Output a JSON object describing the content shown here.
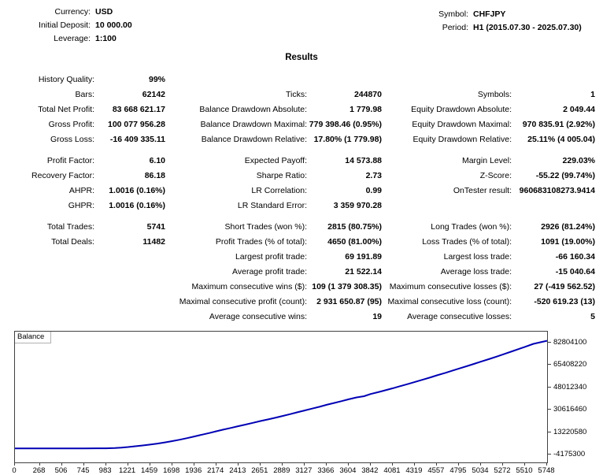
{
  "header": {
    "left": [
      {
        "label": "Currency:",
        "value": "USD"
      },
      {
        "label": "Initial Deposit:",
        "value": "10 000.00"
      },
      {
        "label": "Leverage:",
        "value": "1:100"
      }
    ],
    "right": [
      {
        "label": "Symbol:",
        "value": "CHFJPY"
      },
      {
        "label": "Period:",
        "value": "H1 (2015.07.30 - 2025.07.30)"
      }
    ]
  },
  "results_title": "Results",
  "stats": {
    "rows": [
      [
        [
          "History Quality:",
          "99%"
        ],
        null,
        null
      ],
      [
        [
          "Bars:",
          "62142"
        ],
        [
          "Ticks:",
          "244870"
        ],
        [
          "Symbols:",
          "1"
        ]
      ],
      [
        [
          "Total Net Profit:",
          "83 668 621.17"
        ],
        [
          "Balance Drawdown Absolute:",
          "1 779.98"
        ],
        [
          "Equity Drawdown Absolute:",
          "2 049.44"
        ]
      ],
      [
        [
          "Gross Profit:",
          "100 077 956.28"
        ],
        [
          "Balance Drawdown Maximal:",
          "779 398.46 (0.95%)"
        ],
        [
          "Equity Drawdown Maximal:",
          "970 835.91 (2.92%)"
        ]
      ],
      [
        [
          "Gross Loss:",
          "-16 409 335.11"
        ],
        [
          "Balance Drawdown Relative:",
          "17.80% (1 779.98)"
        ],
        [
          "Equity Drawdown Relative:",
          "25.11% (4 005.04)"
        ]
      ],
      null,
      [
        [
          "Profit Factor:",
          "6.10"
        ],
        [
          "Expected Payoff:",
          "14 573.88"
        ],
        [
          "Margin Level:",
          "229.03%"
        ]
      ],
      [
        [
          "Recovery Factor:",
          "86.18"
        ],
        [
          "Sharpe Ratio:",
          "2.73"
        ],
        [
          "Z-Score:",
          "-55.22 (99.74%)"
        ]
      ],
      [
        [
          "AHPR:",
          "1.0016 (0.16%)"
        ],
        [
          "LR Correlation:",
          "0.99"
        ],
        [
          "OnTester result:",
          "960683108273.9414"
        ]
      ],
      [
        [
          "GHPR:",
          "1.0016 (0.16%)"
        ],
        [
          "LR Standard Error:",
          "3 359 970.28"
        ],
        null
      ],
      null,
      [
        [
          "Total Trades:",
          "5741"
        ],
        [
          "Short Trades (won %):",
          "2815 (80.75%)"
        ],
        [
          "Long Trades (won %):",
          "2926 (81.24%)"
        ]
      ],
      [
        [
          "Total Deals:",
          "11482"
        ],
        [
          "Profit Trades (% of total):",
          "4650 (81.00%)"
        ],
        [
          "Loss Trades (% of total):",
          "1091 (19.00%)"
        ]
      ],
      [
        null,
        [
          "Largest profit trade:",
          "69 191.89"
        ],
        [
          "Largest loss trade:",
          "-66 160.34"
        ]
      ],
      [
        null,
        [
          "Average profit trade:",
          "21 522.14"
        ],
        [
          "Average loss trade:",
          "-15 040.64"
        ]
      ],
      [
        null,
        [
          "Maximum consecutive wins ($):",
          "109 (1 379 308.35)"
        ],
        [
          "Maximum consecutive losses ($):",
          "27 (-419 562.52)"
        ]
      ],
      [
        null,
        [
          "Maximal consecutive profit (count):",
          "2 931 650.87 (95)"
        ],
        [
          "Maximal consecutive loss (count):",
          "-520 619.23 (13)"
        ]
      ],
      [
        null,
        [
          "Average consecutive wins:",
          "19"
        ],
        [
          "Average consecutive losses:",
          "5"
        ]
      ]
    ]
  },
  "chart_data": {
    "type": "line",
    "title": "Balance",
    "xlabel": "",
    "ylabel": "",
    "legend_position": "top-left",
    "grid": false,
    "xlim": [
      0,
      5748
    ],
    "ylim": [
      -10917000,
      90766000
    ],
    "x_ticks": [
      0,
      268,
      506,
      745,
      983,
      1221,
      1459,
      1698,
      1936,
      2174,
      2413,
      2651,
      2889,
      3127,
      3366,
      3604,
      3842,
      4081,
      4319,
      4557,
      4795,
      5034,
      5272,
      5510,
      5748
    ],
    "y_ticks": [
      82804100,
      65408220,
      48012340,
      30616460,
      13220580,
      -4175300
    ],
    "series": [
      {
        "name": "Balance",
        "color": "#0000b4",
        "points": [
          [
            0,
            10000
          ],
          [
            150,
            10100
          ],
          [
            300,
            10300
          ],
          [
            450,
            10500
          ],
          [
            600,
            10800
          ],
          [
            750,
            11500
          ],
          [
            880,
            20000
          ],
          [
            983,
            60000
          ],
          [
            1080,
            300000
          ],
          [
            1150,
            620000
          ],
          [
            1221,
            1000000
          ],
          [
            1300,
            1620000
          ],
          [
            1380,
            2250000
          ],
          [
            1459,
            2950000
          ],
          [
            1540,
            3750000
          ],
          [
            1620,
            4650000
          ],
          [
            1698,
            5600000
          ],
          [
            1780,
            6750000
          ],
          [
            1860,
            7950000
          ],
          [
            1936,
            9250000
          ],
          [
            2020,
            10650000
          ],
          [
            2100,
            11950000
          ],
          [
            2174,
            13250000
          ],
          [
            2250,
            14550000
          ],
          [
            2330,
            15850000
          ],
          [
            2413,
            17250000
          ],
          [
            2490,
            18500000
          ],
          [
            2570,
            19850000
          ],
          [
            2651,
            21250000
          ],
          [
            2730,
            22450000
          ],
          [
            2810,
            23750000
          ],
          [
            2889,
            25150000
          ],
          [
            2970,
            26600000
          ],
          [
            3050,
            28050000
          ],
          [
            3127,
            29450000
          ],
          [
            3210,
            30950000
          ],
          [
            3290,
            32350000
          ],
          [
            3366,
            33850000
          ],
          [
            3450,
            35350000
          ],
          [
            3530,
            36750000
          ],
          [
            3604,
            38150000
          ],
          [
            3690,
            39600000
          ],
          [
            3770,
            40550000
          ],
          [
            3842,
            42250000
          ],
          [
            3930,
            43850000
          ],
          [
            4010,
            45350000
          ],
          [
            4081,
            46750000
          ],
          [
            4170,
            48550000
          ],
          [
            4250,
            50150000
          ],
          [
            4319,
            51650000
          ],
          [
            4410,
            53550000
          ],
          [
            4490,
            55250000
          ],
          [
            4557,
            56750000
          ],
          [
            4650,
            58750000
          ],
          [
            4730,
            60550000
          ],
          [
            4795,
            62050000
          ],
          [
            4890,
            64150000
          ],
          [
            4970,
            65950000
          ],
          [
            5034,
            67450000
          ],
          [
            5130,
            69650000
          ],
          [
            5210,
            71550000
          ],
          [
            5272,
            73050000
          ],
          [
            5370,
            75450000
          ],
          [
            5450,
            77450000
          ],
          [
            5510,
            78950000
          ],
          [
            5600,
            81250000
          ],
          [
            5680,
            82550000
          ],
          [
            5748,
            83678621
          ]
        ]
      }
    ]
  }
}
